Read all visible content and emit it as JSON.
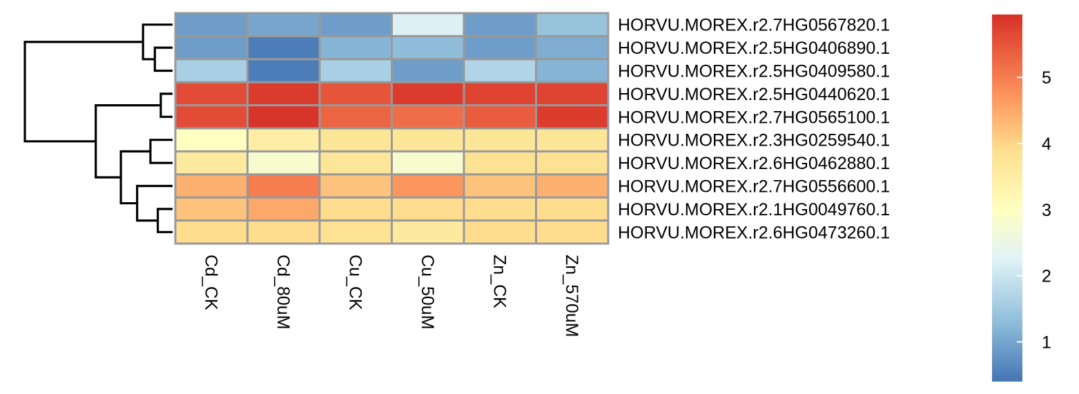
{
  "chart_data": {
    "type": "heatmap",
    "title": "",
    "columns": [
      "Cd_CK",
      "Cd_80uM",
      "Cu_CK",
      "Cu_50uM",
      "Zn_CK",
      "Zn_570uM"
    ],
    "rows": [
      "HORVU.MOREX.r2.7HG0567820.1",
      "HORVU.MOREX.r2.5HG0406890.1",
      "HORVU.MOREX.r2.5HG0409580.1",
      "HORVU.MOREX.r2.5HG0440620.1",
      "HORVU.MOREX.r2.7HG0565100.1",
      "HORVU.MOREX.r2.3HG0259540.1",
      "HORVU.MOREX.r2.6HG0462880.1",
      "HORVU.MOREX.r2.7HG0556600.1",
      "HORVU.MOREX.r2.1HG0049760.1",
      "HORVU.MOREX.r2.6HG0473260.1"
    ],
    "values": [
      [
        0.9,
        1.0,
        0.9,
        2.2,
        0.9,
        1.4
      ],
      [
        0.9,
        0.5,
        1.2,
        1.3,
        0.9,
        1.1
      ],
      [
        1.6,
        0.5,
        1.6,
        0.9,
        1.7,
        1.2
      ],
      [
        5.6,
        5.8,
        5.5,
        5.8,
        5.7,
        5.7
      ],
      [
        5.6,
        5.9,
        5.3,
        5.2,
        5.4,
        5.8
      ],
      [
        3.0,
        3.5,
        3.7,
        3.7,
        3.7,
        3.7
      ],
      [
        3.6,
        2.8,
        3.7,
        2.8,
        3.8,
        3.8
      ],
      [
        4.4,
        5.0,
        4.2,
        4.7,
        4.2,
        4.4
      ],
      [
        4.2,
        4.5,
        3.9,
        3.9,
        3.9,
        3.9
      ],
      [
        3.9,
        3.9,
        3.8,
        3.6,
        3.9,
        3.9
      ]
    ],
    "color_scale": {
      "min": 0.4,
      "max": 5.95,
      "stops": [
        {
          "value": 0.4,
          "color": "#4575b4"
        },
        {
          "value": 1.32,
          "color": "#91bfdb"
        },
        {
          "value": 2.25,
          "color": "#e0f3f8"
        },
        {
          "value": 3.0,
          "color": "#ffffbf"
        },
        {
          "value": 3.87,
          "color": "#fee090"
        },
        {
          "value": 4.8,
          "color": "#fc8d59"
        },
        {
          "value": 5.95,
          "color": "#d73027"
        }
      ]
    },
    "legend": {
      "placement": "right",
      "ticks": [
        1,
        2,
        3,
        4,
        5
      ],
      "tick_labels": [
        "1",
        "2",
        "3",
        "4",
        "5"
      ]
    },
    "row_dendrogram": {
      "placement": "left",
      "merges": [
        {
          "a": 1,
          "b": 2,
          "height": 0.12
        },
        {
          "a": 0,
          "b": 10,
          "height": 0.2
        },
        {
          "a": 3,
          "b": 4,
          "height": 0.08
        },
        {
          "a": 5,
          "b": 6,
          "height": 0.15
        },
        {
          "a": 8,
          "b": 9,
          "height": 0.1
        },
        {
          "a": 7,
          "b": 14,
          "height": 0.24
        },
        {
          "a": 13,
          "b": 15,
          "height": 0.35
        },
        {
          "a": 12,
          "b": 16,
          "height": 0.52
        },
        {
          "a": 11,
          "b": 17,
          "height": 1.0
        }
      ]
    },
    "grid_color": "#999999",
    "dendrogram_color": "#000000"
  }
}
